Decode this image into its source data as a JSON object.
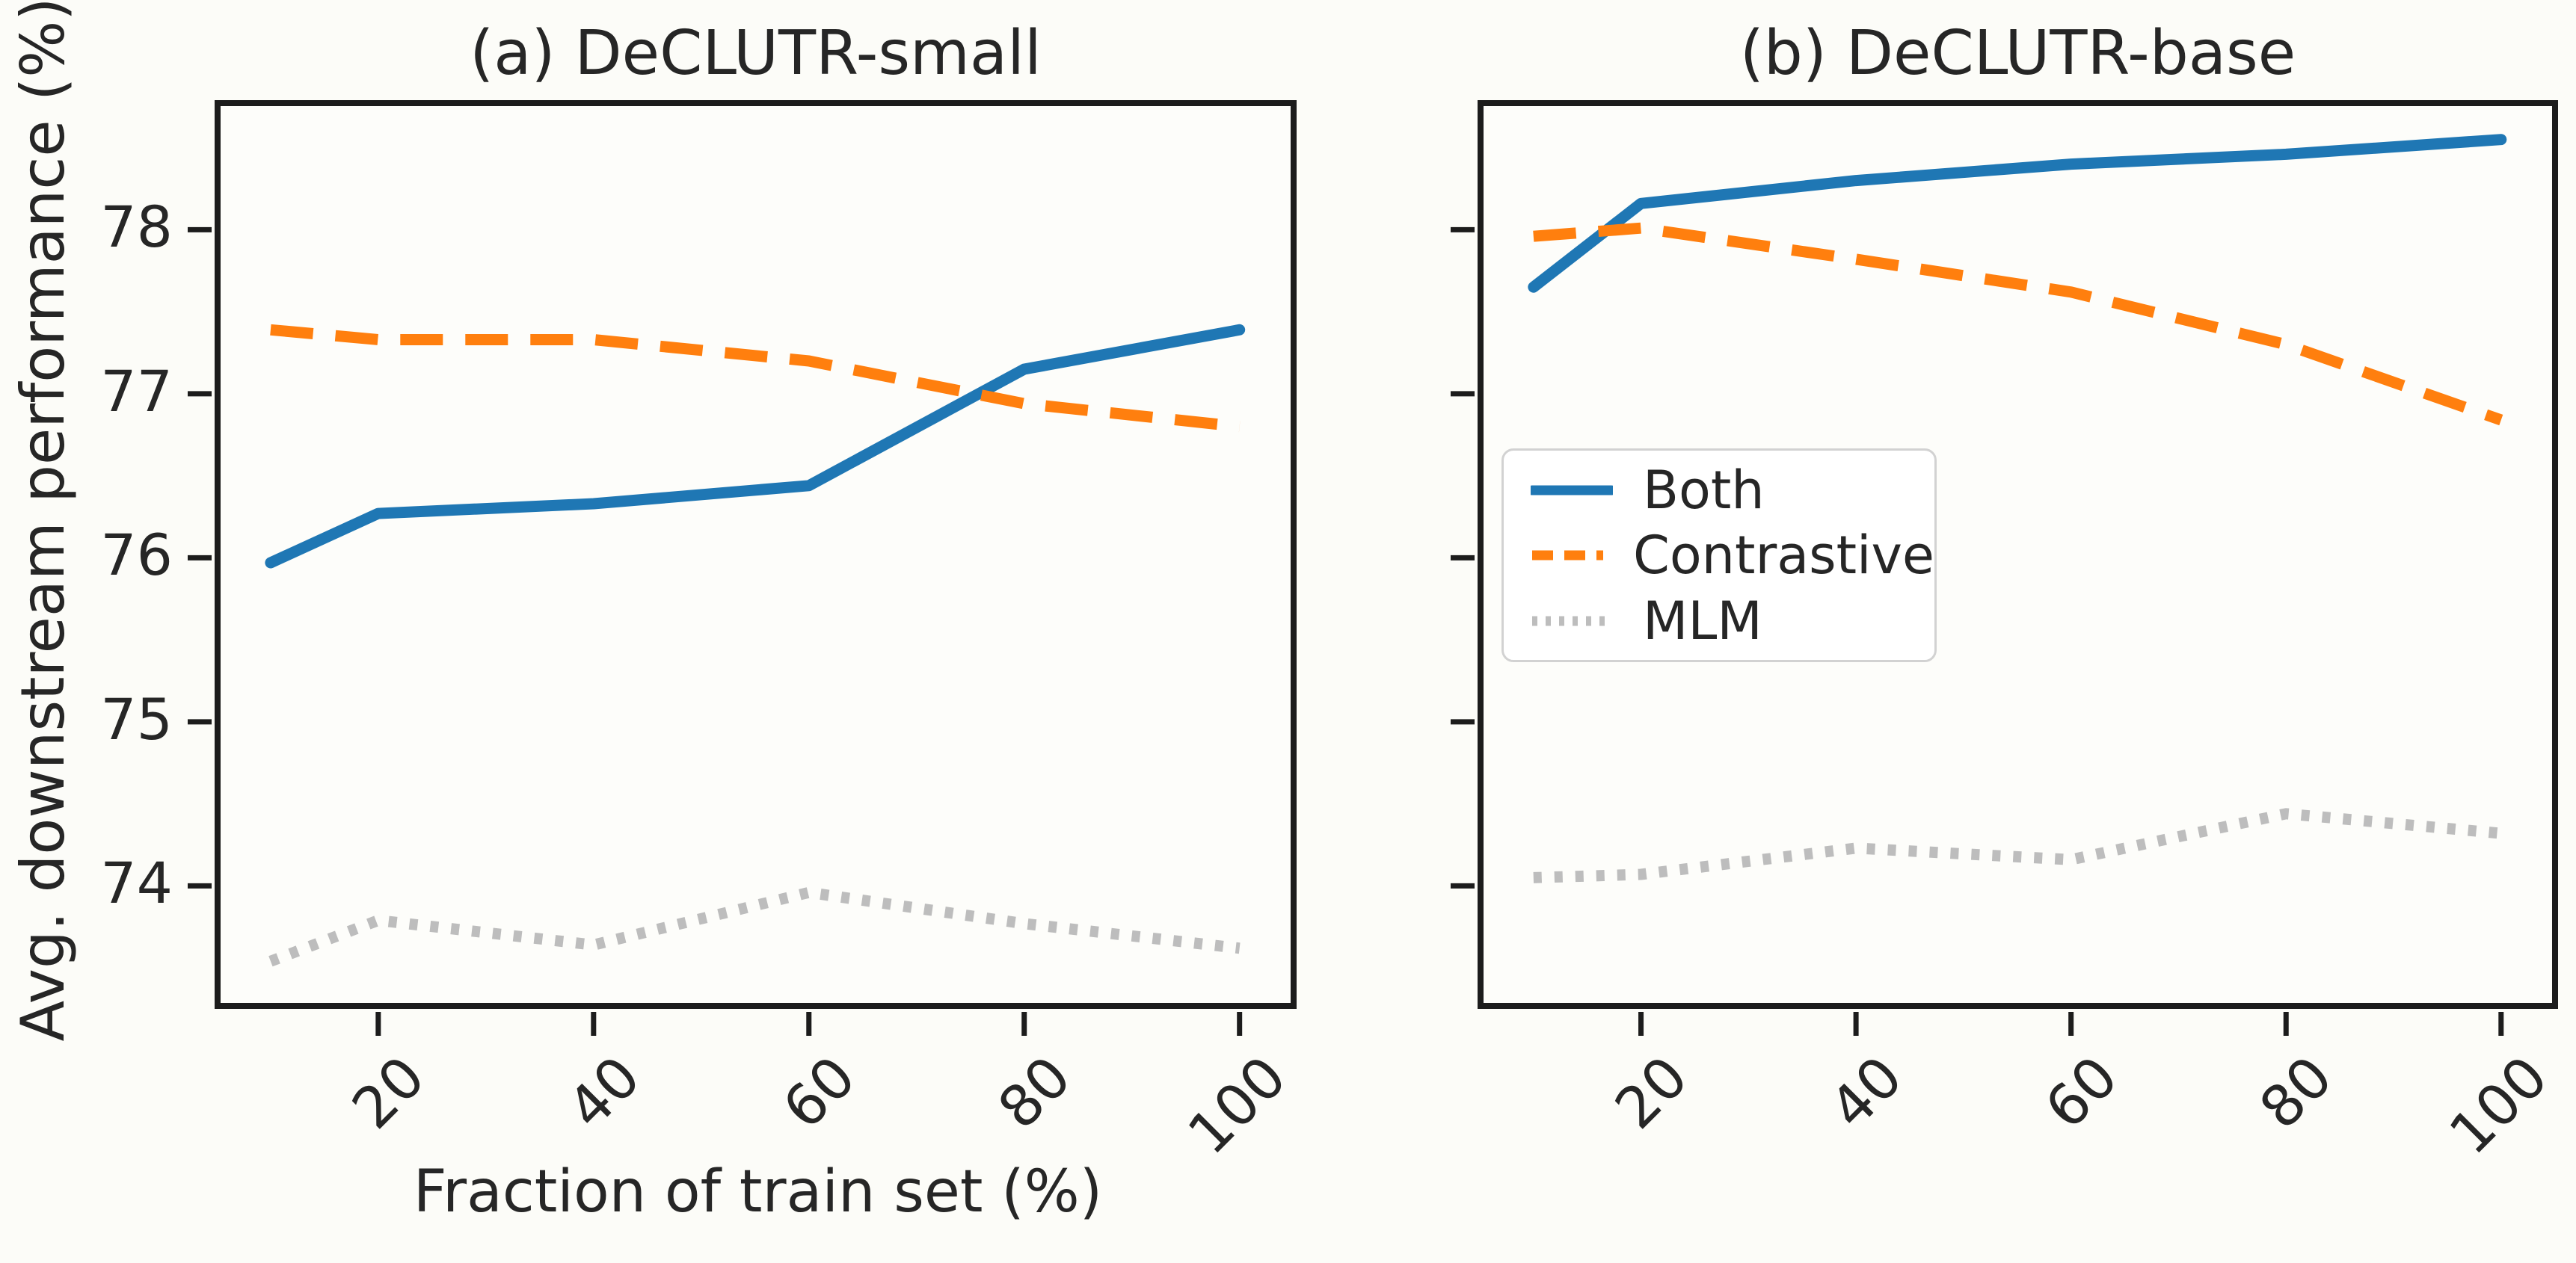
{
  "figure": {
    "ylabel": "Avg. downstream performance (%)",
    "xlabel": "Fraction of train set (%)",
    "colors": {
      "both": "#1f77b4",
      "contrastive": "#ff7f0e",
      "mlm": "#bdbdbd",
      "spine": "#1c1c1c",
      "text": "#262626",
      "plot_background": "#fdfdfa"
    }
  },
  "chart_data": [
    {
      "type": "line",
      "title": "(a) DeCLUTR-small",
      "xlabel": "Fraction of train set (%)",
      "ylabel": "Avg. downstream performance (%)",
      "x": [
        10,
        20,
        40,
        60,
        80,
        100
      ],
      "series": [
        {
          "name": "Both",
          "style": "solid",
          "color": "#1f77b4",
          "values": [
            75.97,
            76.27,
            76.33,
            76.44,
            77.15,
            77.39
          ]
        },
        {
          "name": "Contrastive",
          "style": "dashed",
          "color": "#ff7f0e",
          "values": [
            77.39,
            77.33,
            77.33,
            77.2,
            76.94,
            76.8
          ]
        },
        {
          "name": "MLM",
          "style": "dotted",
          "color": "#bdbdbd",
          "values": [
            73.54,
            73.79,
            73.64,
            73.96,
            73.77,
            73.62
          ]
        }
      ],
      "xlim": [
        4.8,
        105.3
      ],
      "ylim": [
        73.25,
        78.79
      ],
      "xticks": [
        20,
        40,
        60,
        80,
        100
      ],
      "yticks": [
        74,
        75,
        76,
        77,
        78
      ],
      "show_ytick_labels": true,
      "legend": false,
      "grid": false
    },
    {
      "type": "line",
      "title": "(b) DeCLUTR-base",
      "x": [
        10,
        20,
        40,
        60,
        80,
        100
      ],
      "series": [
        {
          "name": "Both",
          "style": "solid",
          "color": "#1f77b4",
          "values": [
            77.65,
            78.16,
            78.3,
            78.4,
            78.46,
            78.55
          ]
        },
        {
          "name": "Contrastive",
          "style": "dashed",
          "color": "#ff7f0e",
          "values": [
            77.96,
            78.01,
            77.82,
            77.62,
            77.3,
            76.84
          ]
        },
        {
          "name": "MLM",
          "style": "dotted",
          "color": "#bdbdbd",
          "values": [
            74.05,
            74.07,
            74.23,
            74.16,
            74.44,
            74.32
          ]
        }
      ],
      "xlim": [
        4.8,
        105.3
      ],
      "ylim": [
        73.25,
        78.79
      ],
      "xticks": [
        20,
        40,
        60,
        80,
        100
      ],
      "yticks": [
        74,
        75,
        76,
        77,
        78
      ],
      "show_ytick_labels": false,
      "legend": true,
      "legend_position": "center left",
      "grid": false
    }
  ]
}
